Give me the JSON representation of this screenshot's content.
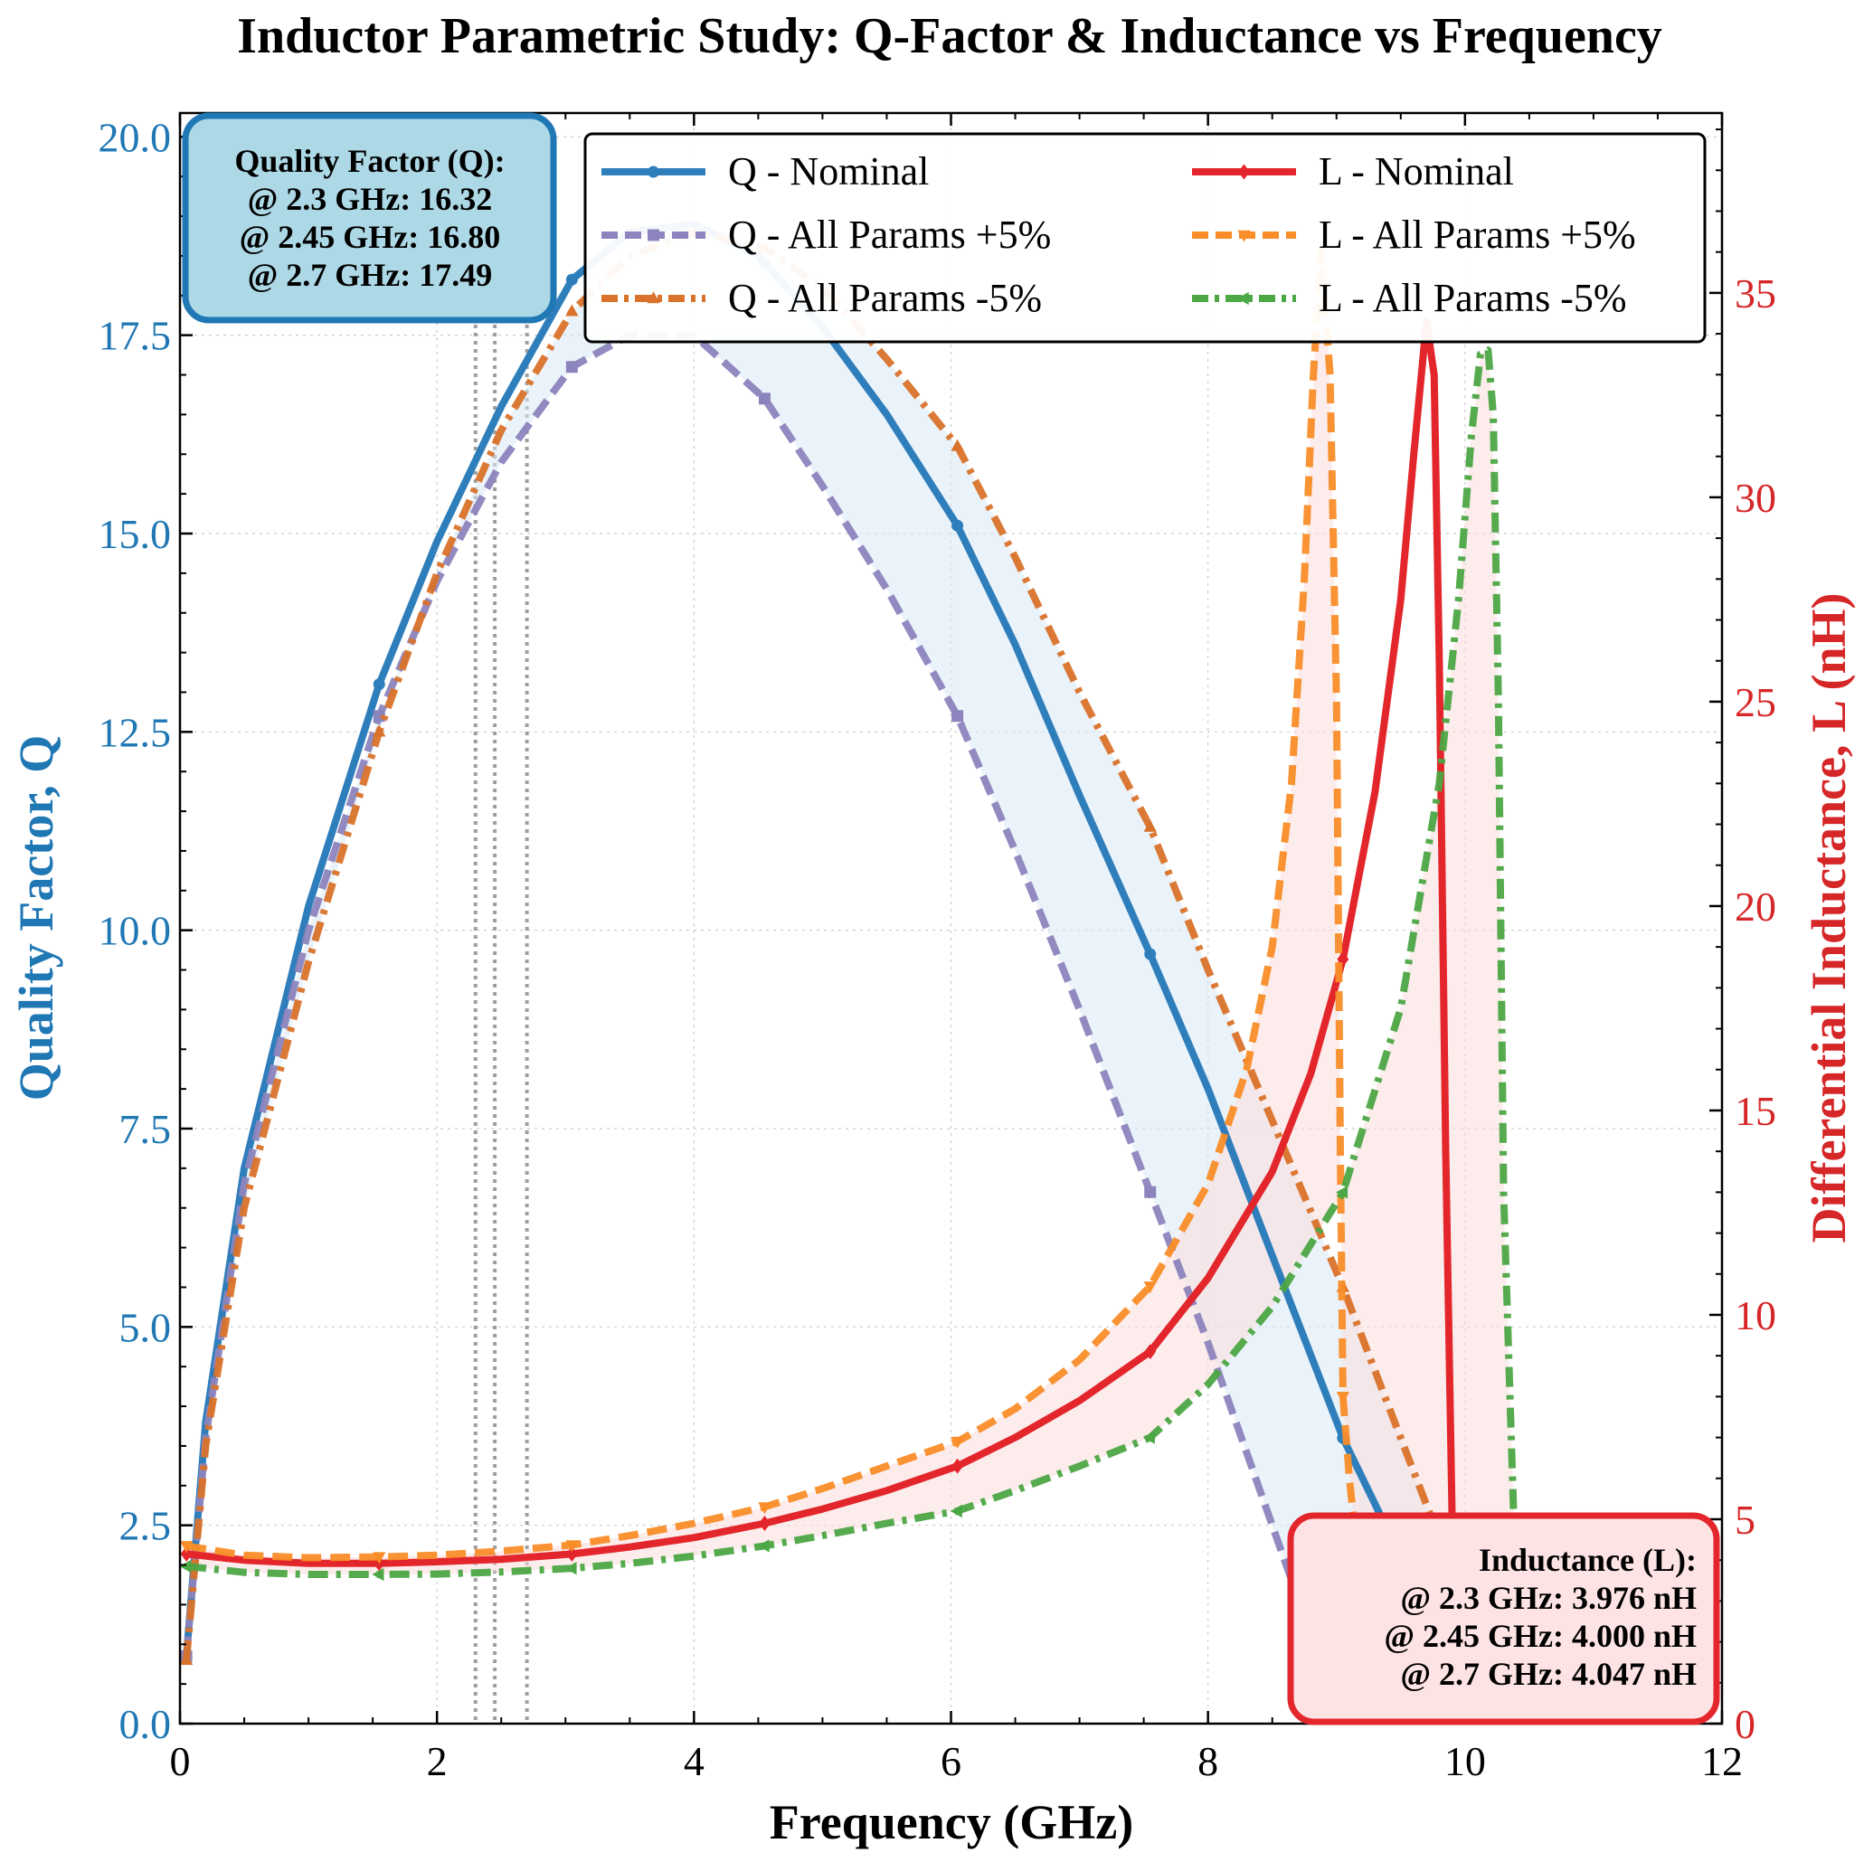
{
  "title": "Inductor Parametric Study: Q-Factor & Inductance vs Frequency",
  "xlabel": "Frequency (GHz)",
  "ylabel_left": "Quality Factor, Q",
  "ylabel_right": "Differential Inductance, L (nH)",
  "colors": {
    "q_nominal": "#2f7ebc",
    "q_plus5": "#8c84bd",
    "q_minus5": "#d9722a",
    "l_nominal": "#e3262b",
    "l_plus5": "#f98d28",
    "l_minus5": "#4ca745",
    "q_band": "#dbe9f6",
    "l_band": "#fbdcdc",
    "left_axis": "#1f77b4",
    "right_axis": "#d62728"
  },
  "legend": {
    "placement": "upper-right",
    "columns": 2,
    "entries": [
      "Q - Nominal",
      "Q - All Params +5%",
      "Q - All Params -5%",
      "L - Nominal",
      "L - All Params +5%",
      "L - All Params -5%"
    ]
  },
  "annotation_q": {
    "title": "Quality Factor (Q):",
    "lines": [
      "@ 2.3 GHz: 16.32",
      "@ 2.45 GHz: 16.80",
      "@ 2.7 GHz: 17.49"
    ]
  },
  "annotation_l": {
    "title": "Inductance (L):",
    "lines": [
      "@ 2.3 GHz: 3.976 nH",
      "@ 2.45 GHz: 4.000 nH",
      "@ 2.7 GHz: 4.047 nH"
    ]
  },
  "chart_data": {
    "type": "line",
    "x_range": [
      0,
      12
    ],
    "y_left_range": [
      0,
      20.3
    ],
    "y_right_range": [
      0,
      39.4
    ],
    "x_ticks": [
      0,
      2,
      4,
      6,
      8,
      10,
      12
    ],
    "y_left_ticks": [
      0.0,
      2.5,
      5.0,
      7.5,
      10.0,
      12.5,
      15.0,
      17.5,
      20.0
    ],
    "y_right_ticks": [
      0,
      5,
      10,
      15,
      20,
      25,
      30,
      35
    ],
    "grid": true,
    "reference_lines_x": [
      2.3,
      2.45,
      2.7
    ],
    "series": [
      {
        "name": "Q - Nominal",
        "axis": "left",
        "style": "solid",
        "x": [
          0.05,
          0.2,
          0.5,
          1.0,
          1.55,
          2.0,
          2.5,
          3.05,
          3.5,
          4.0,
          4.5,
          5.0,
          5.5,
          6.05,
          6.5,
          7.0,
          7.55,
          8.0,
          8.5,
          9.05,
          9.5,
          10.0,
          10.45
        ],
        "y": [
          0.85,
          3.8,
          7.0,
          10.3,
          13.1,
          14.9,
          16.6,
          18.2,
          18.8,
          18.9,
          18.5,
          17.6,
          16.5,
          15.1,
          13.6,
          11.7,
          9.7,
          8.0,
          5.9,
          3.6,
          2.1,
          0.9,
          0.0
        ]
      },
      {
        "name": "Q - All Params +5%",
        "axis": "left",
        "style": "dashed",
        "x": [
          0.05,
          0.2,
          0.5,
          1.0,
          1.55,
          2.0,
          2.5,
          3.05,
          3.5,
          4.0,
          4.55,
          5.0,
          5.5,
          6.05,
          6.5,
          7.0,
          7.55,
          8.0,
          8.5,
          9.0
        ],
        "y": [
          0.85,
          3.6,
          6.8,
          10.0,
          12.7,
          14.4,
          15.9,
          17.1,
          17.5,
          17.5,
          16.7,
          15.6,
          14.3,
          12.7,
          11.0,
          9.0,
          6.7,
          4.8,
          2.5,
          0.2
        ]
      },
      {
        "name": "Q - All Params -5%",
        "axis": "left",
        "style": "dashdot",
        "x": [
          0.05,
          0.2,
          0.5,
          1.0,
          1.55,
          2.0,
          2.5,
          3.05,
          3.5,
          4.0,
          4.55,
          5.0,
          5.5,
          6.05,
          6.5,
          7.0,
          7.55,
          8.0,
          8.5,
          9.05,
          9.5,
          10.0,
          10.45
        ],
        "y": [
          0.8,
          3.5,
          6.5,
          9.6,
          12.5,
          14.5,
          16.3,
          17.8,
          18.5,
          18.8,
          18.6,
          18.1,
          17.2,
          16.1,
          14.7,
          13.0,
          11.3,
          9.5,
          7.6,
          5.5,
          3.6,
          1.5,
          0.0
        ]
      },
      {
        "name": "L - Nominal",
        "axis": "right",
        "style": "solid",
        "x": [
          0.05,
          0.5,
          1.0,
          1.55,
          2.0,
          2.5,
          3.05,
          3.5,
          4.0,
          4.55,
          5.0,
          5.5,
          6.05,
          6.5,
          7.0,
          7.55,
          8.0,
          8.5,
          8.8,
          9.05,
          9.3,
          9.5,
          9.6,
          9.7,
          9.76,
          9.8,
          9.85,
          9.9,
          9.95
        ],
        "y": [
          4.15,
          4.0,
          3.92,
          3.92,
          3.96,
          4.02,
          4.15,
          4.32,
          4.55,
          4.9,
          5.25,
          5.7,
          6.3,
          7.0,
          7.9,
          9.1,
          10.9,
          13.5,
          15.9,
          18.7,
          22.8,
          27.5,
          31.0,
          34.3,
          33.0,
          26.0,
          14.0,
          5.0,
          0.0
        ]
      },
      {
        "name": "L - All Params +5%",
        "axis": "right",
        "style": "dashed",
        "x": [
          0.05,
          0.5,
          1.0,
          1.55,
          2.0,
          2.5,
          3.05,
          3.5,
          4.0,
          4.55,
          5.0,
          5.5,
          6.05,
          6.5,
          7.0,
          7.55,
          8.0,
          8.3,
          8.5,
          8.65,
          8.75,
          8.82,
          8.88,
          8.95,
          9.0,
          9.03,
          9.05,
          9.1,
          9.2,
          9.35
        ],
        "y": [
          4.35,
          4.12,
          4.06,
          4.08,
          4.12,
          4.22,
          4.37,
          4.6,
          4.9,
          5.3,
          5.75,
          6.3,
          6.9,
          7.7,
          8.9,
          10.7,
          13.2,
          16.0,
          19.0,
          23.0,
          28.0,
          33.0,
          36.0,
          33.0,
          25.0,
          14.0,
          8.0,
          6.0,
          3.0,
          0.0
        ]
      },
      {
        "name": "L - All Params -5%",
        "axis": "right",
        "style": "dashdot",
        "x": [
          0.05,
          0.5,
          1.0,
          1.55,
          2.0,
          2.5,
          3.05,
          3.5,
          4.0,
          4.55,
          5.0,
          5.5,
          6.05,
          6.5,
          7.0,
          7.55,
          8.0,
          8.5,
          9.05,
          9.5,
          9.8,
          9.95,
          10.05,
          10.12,
          10.18,
          10.22,
          10.26,
          10.3,
          10.38,
          10.45
        ],
        "y": [
          3.85,
          3.7,
          3.65,
          3.65,
          3.66,
          3.71,
          3.8,
          3.92,
          4.1,
          4.35,
          4.6,
          4.9,
          5.2,
          5.7,
          6.3,
          7.0,
          8.3,
          10.2,
          13.0,
          17.5,
          23.0,
          27.5,
          31.5,
          33.5,
          33.6,
          32.0,
          25.0,
          13.0,
          5.0,
          0.0
        ]
      }
    ]
  }
}
